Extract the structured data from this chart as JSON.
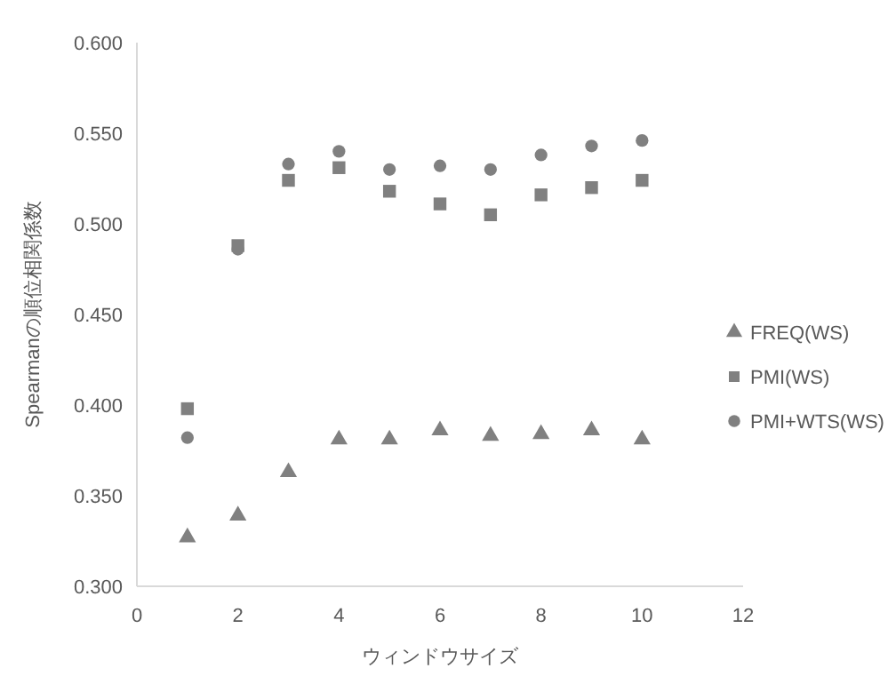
{
  "chart_data": {
    "type": "scatter",
    "xlabel": "ウィンドウサイズ",
    "ylabel": "Spearmanの順位相関係数",
    "x": [
      1,
      2,
      3,
      4,
      5,
      6,
      7,
      8,
      9,
      10
    ],
    "series": [
      {
        "name": "FREQ(WS)",
        "color": "#808080",
        "marker": "triangle",
        "values": [
          0.327,
          0.339,
          0.363,
          0.381,
          0.381,
          0.386,
          0.383,
          0.384,
          0.386,
          0.381
        ]
      },
      {
        "name": "PMI(WS)",
        "color": "#808080",
        "marker": "square",
        "values": [
          0.398,
          0.488,
          0.524,
          0.531,
          0.518,
          0.511,
          0.505,
          0.516,
          0.52,
          0.524
        ]
      },
      {
        "name": "PMI+WTS(WS)",
        "color": "#808080",
        "marker": "circle",
        "values": [
          0.382,
          0.486,
          0.533,
          0.54,
          0.53,
          0.532,
          0.53,
          0.538,
          0.543,
          0.546
        ]
      }
    ],
    "xlim": [
      0,
      12
    ],
    "xticks": [
      0,
      2,
      4,
      6,
      8,
      10,
      12
    ],
    "ylim": [
      0.3,
      0.6
    ],
    "yticks": [
      {
        "value": 0.3,
        "label": "0.300"
      },
      {
        "value": 0.35,
        "label": "0.350"
      },
      {
        "value": 0.4,
        "label": "0.400"
      },
      {
        "value": 0.45,
        "label": "0.450"
      },
      {
        "value": 0.5,
        "label": "0.500"
      },
      {
        "value": 0.55,
        "label": "0.550"
      },
      {
        "value": 0.6,
        "label": "0.600"
      }
    ],
    "grid": false,
    "legend": "right"
  }
}
